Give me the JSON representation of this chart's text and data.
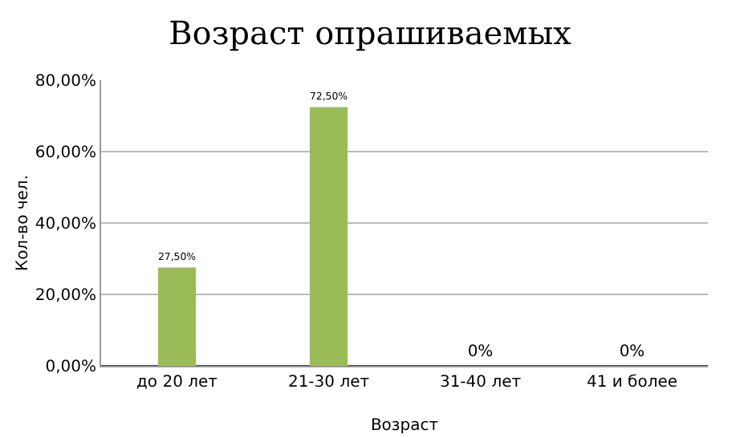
{
  "chart_data": {
    "type": "bar",
    "title": "Возраст опрашиваемых",
    "xlabel": "Возраст",
    "ylabel": "Кол-во чел.",
    "categories": [
      "до 20 лет",
      "21-30 лет",
      "31-40 лет",
      "41 и более"
    ],
    "values": [
      27.5,
      72.5,
      0,
      0
    ],
    "value_labels": [
      "27,50%",
      "72,50%",
      "0%",
      "0%"
    ],
    "color": "#9bbb59",
    "ylim": [
      0,
      80
    ],
    "yticks": [
      {
        "value": 0,
        "label": "0,00%"
      },
      {
        "value": 20,
        "label": "20,00%"
      },
      {
        "value": 40,
        "label": "40,00%"
      },
      {
        "value": 60,
        "label": "60,00%"
      },
      {
        "value": 80,
        "label": "80,00%"
      }
    ],
    "grid": "y"
  }
}
